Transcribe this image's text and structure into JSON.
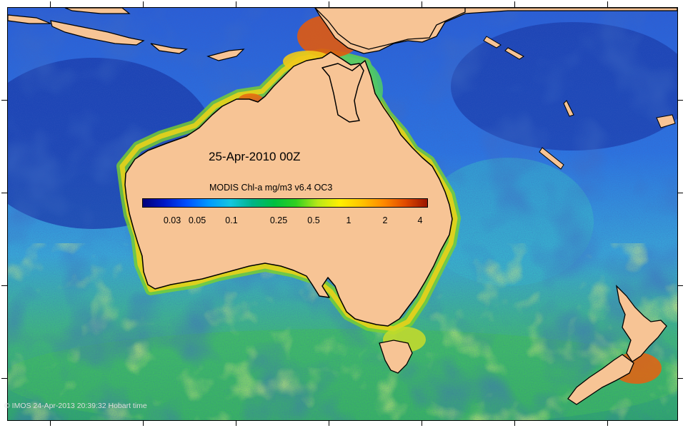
{
  "map": {
    "title": "25-Apr-2010 00Z",
    "colorbar": {
      "title": "MODIS Chl-a mg/m3 v6.4 OC3",
      "labels": [
        "0.03",
        "0.05",
        "0.1",
        "0.25",
        "0.5",
        "1",
        "2",
        "4"
      ],
      "colors": [
        "#00007a",
        "#0018c8",
        "#0050ff",
        "#0099ff",
        "#14c6e0",
        "#00b487",
        "#00c040",
        "#30d020",
        "#b8e818",
        "#fff000",
        "#ffc400",
        "#ff8a00",
        "#e04a00",
        "#9a1400"
      ]
    },
    "copyright": "© IMOS 24-Apr-2013 20:39:32 Hobart time",
    "land_color": "#f7c495",
    "ocean_colors": {
      "deep_blue": "#1a3fb0",
      "blue": "#2f6fe0",
      "cyan": "#3ab7df",
      "green": "#37b866",
      "yellow_green": "#b8e050",
      "coastal": "#e86a10"
    }
  }
}
